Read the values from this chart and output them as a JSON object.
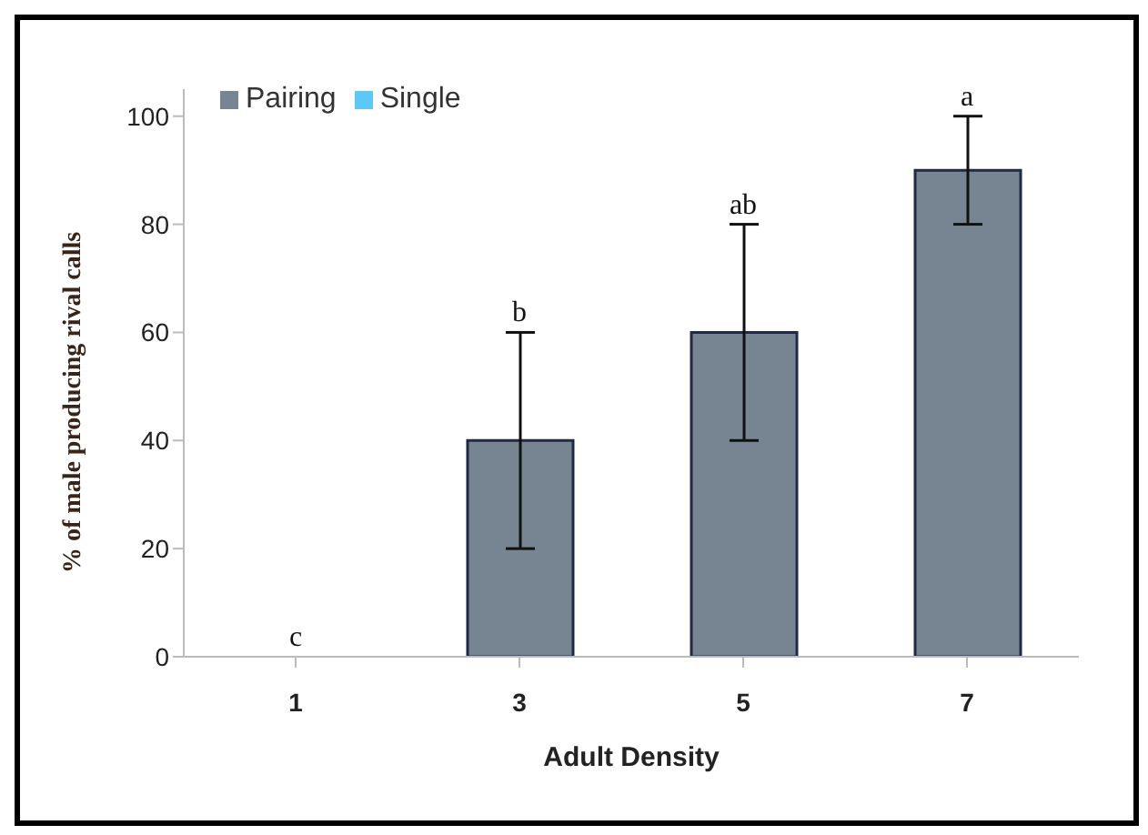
{
  "chart_data": {
    "type": "bar",
    "categories": [
      "1",
      "3",
      "5",
      "7"
    ],
    "series": [
      {
        "name": "Single",
        "color": "#5bc8f5",
        "values": [
          null,
          null,
          null,
          null
        ]
      },
      {
        "name": "Pairing",
        "color": "#778593",
        "values": [
          0,
          40,
          60,
          90
        ],
        "errors": [
          null,
          20,
          20,
          10
        ]
      }
    ],
    "xlabel": "Adult Density",
    "ylabel": "% of male producing rival calls",
    "ylim": [
      0,
      105
    ],
    "yticks": [
      0,
      20,
      40,
      60,
      80,
      100
    ],
    "legend": "top left",
    "grid": false,
    "annotations": [
      "c",
      "b",
      "ab",
      "a"
    ]
  }
}
